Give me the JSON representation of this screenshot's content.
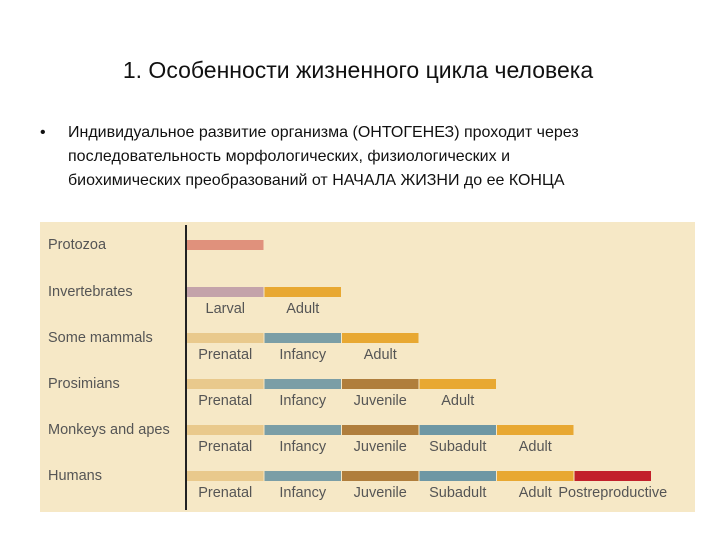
{
  "header": {
    "title": "1. Особенности жизненного цикла человека"
  },
  "bullet": {
    "lines": [
      "Индивидуальное развитие организма (ОНТОГЕНЕЗ) проходит через",
      "последовательность морфологических, физиологических и",
      "биохимических преобразований от НАЧАЛА ЖИЗНИ до ее КОНЦА"
    ]
  },
  "diagram": {
    "rows": [
      {
        "label": "Protozoa",
        "segments": [
          {
            "color": "#e0917c"
          }
        ]
      },
      {
        "label": "Invertebrates",
        "segments": [
          {
            "name": "Larval",
            "color": "#c4a3aa"
          },
          {
            "name": "Adult",
            "color": "#e8a832"
          }
        ]
      },
      {
        "label": "Some mammals",
        "segments": [
          {
            "name": "Prenatal",
            "color": "#e9c98c"
          },
          {
            "name": "Infancy",
            "color": "#7b9ea6"
          },
          {
            "name": "Adult",
            "color": "#e8a832"
          }
        ]
      },
      {
        "label": "Prosimians",
        "segments": [
          {
            "name": "Prenatal",
            "color": "#e9c98c"
          },
          {
            "name": "Infancy",
            "color": "#7b9ea6"
          },
          {
            "name": "Juvenile",
            "color": "#b07e3c"
          },
          {
            "name": "Adult",
            "color": "#e8a832"
          }
        ]
      },
      {
        "label": "Monkeys and apes",
        "segments": [
          {
            "name": "Prenatal",
            "color": "#e9c98c"
          },
          {
            "name": "Infancy",
            "color": "#7b9ea6"
          },
          {
            "name": "Juvenile",
            "color": "#b07e3c"
          },
          {
            "name": "Subadult",
            "color": "#6e97a4"
          },
          {
            "name": "Adult",
            "color": "#e8a832"
          }
        ]
      },
      {
        "label": "Humans",
        "segments": [
          {
            "name": "Prenatal",
            "color": "#e9c98c"
          },
          {
            "name": "Infancy",
            "color": "#7b9ea6"
          },
          {
            "name": "Juvenile",
            "color": "#b07e3c"
          },
          {
            "name": "Subadult",
            "color": "#6e97a4"
          },
          {
            "name": "Adult",
            "color": "#e8a832"
          },
          {
            "name": "Postreproductive",
            "color": "#c2202b"
          }
        ]
      }
    ]
  }
}
